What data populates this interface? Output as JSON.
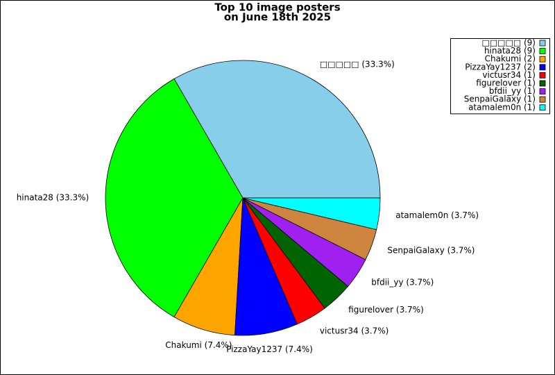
{
  "chart_data": {
    "type": "pie",
    "title": "Top 10 image posters",
    "subtitle": "on June 18th 2025",
    "categories": [
      "□□□□□ (9)",
      "hinata28 (9)",
      "Chakumi (2)",
      "PizzaYay1237 (2)",
      "victusr34 (1)",
      "figurelover (1)",
      "bfdii_yy (1)",
      "SenpaiGalaxy (1)",
      "atamalem0n (1)"
    ],
    "values": [
      9,
      9,
      2,
      2,
      1,
      1,
      1,
      1,
      1
    ],
    "slice_labels": [
      "□□□□□ (33.3%)",
      "hinata28 (33.3%)",
      "Chakumi (7.4%)",
      "PizzaYay1237 (7.4%)",
      "victusr34 (3.7%)",
      "figurelover (3.7%)",
      "bfdii_yy (3.7%)",
      "SenpaiGalaxy (3.7%)",
      "atamalem0n (3.7%)"
    ],
    "colors": [
      "#87ceeb",
      "#00ff00",
      "#ffa500",
      "#0000ff",
      "#ff0000",
      "#006400",
      "#a020f0",
      "#cd853f",
      "#00ffff"
    ],
    "legend": "upper right"
  }
}
